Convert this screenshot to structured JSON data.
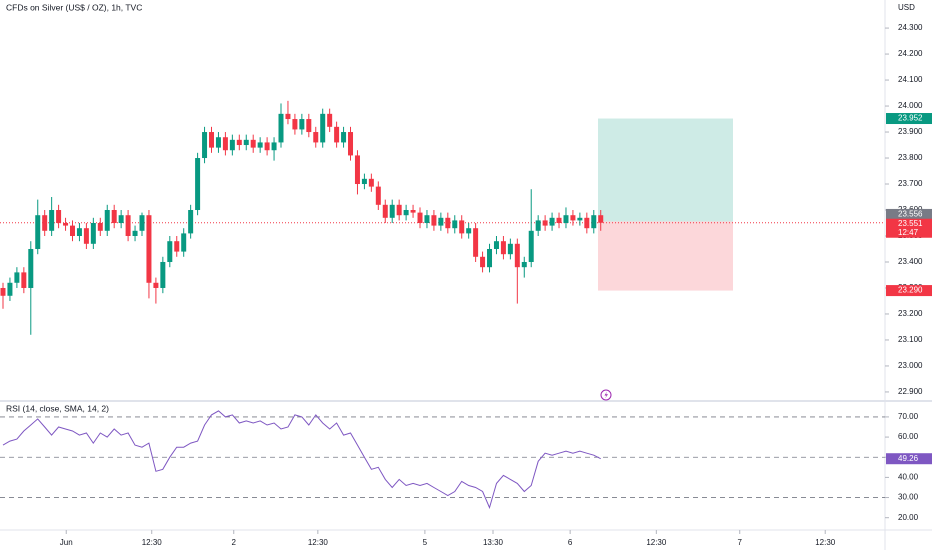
{
  "chart_data": {
    "type": "candlestick",
    "title": "CFDs on Silver (US$ / OZ), 1h, TVC",
    "currency": "USD",
    "up_color": "#089981",
    "down_color": "#f23645",
    "candles": [
      [
        23.3,
        23.32,
        23.22,
        23.27
      ],
      [
        23.27,
        23.34,
        23.25,
        23.32
      ],
      [
        23.32,
        23.38,
        23.3,
        23.36
      ],
      [
        23.36,
        23.38,
        23.28,
        23.3
      ],
      [
        23.3,
        23.48,
        23.12,
        23.45
      ],
      [
        23.45,
        23.64,
        23.43,
        23.58
      ],
      [
        23.58,
        23.6,
        23.5,
        23.52
      ],
      [
        23.52,
        23.65,
        23.5,
        23.6
      ],
      [
        23.6,
        23.62,
        23.53,
        23.55
      ],
      [
        23.55,
        23.57,
        23.52,
        23.54
      ],
      [
        23.54,
        23.56,
        23.48,
        23.5
      ],
      [
        23.5,
        23.55,
        23.48,
        23.53
      ],
      [
        23.53,
        23.55,
        23.45,
        23.47
      ],
      [
        23.47,
        23.57,
        23.45,
        23.55
      ],
      [
        23.55,
        23.57,
        23.5,
        23.52
      ],
      [
        23.52,
        23.62,
        23.5,
        23.6
      ],
      [
        23.6,
        23.62,
        23.53,
        23.55
      ],
      [
        23.55,
        23.6,
        23.53,
        23.58
      ],
      [
        23.58,
        23.6,
        23.48,
        23.5
      ],
      [
        23.5,
        23.54,
        23.48,
        23.52
      ],
      [
        23.52,
        23.59,
        23.5,
        23.58
      ],
      [
        23.58,
        23.6,
        23.26,
        23.32
      ],
      [
        23.32,
        23.34,
        23.24,
        23.3
      ],
      [
        23.3,
        23.42,
        23.28,
        23.4
      ],
      [
        23.4,
        23.5,
        23.38,
        23.48
      ],
      [
        23.48,
        23.5,
        23.42,
        23.44
      ],
      [
        23.44,
        23.53,
        23.42,
        23.51
      ],
      [
        23.51,
        23.62,
        23.49,
        23.6
      ],
      [
        23.6,
        23.82,
        23.58,
        23.8
      ],
      [
        23.8,
        23.92,
        23.78,
        23.9
      ],
      [
        23.9,
        23.92,
        23.82,
        23.84
      ],
      [
        23.84,
        23.9,
        23.82,
        23.88
      ],
      [
        23.88,
        23.9,
        23.81,
        23.83
      ],
      [
        23.83,
        23.89,
        23.81,
        23.87
      ],
      [
        23.87,
        23.89,
        23.83,
        23.85
      ],
      [
        23.85,
        23.89,
        23.83,
        23.87
      ],
      [
        23.87,
        23.89,
        23.82,
        23.84
      ],
      [
        23.84,
        23.88,
        23.82,
        23.86
      ],
      [
        23.86,
        23.88,
        23.81,
        23.83
      ],
      [
        23.83,
        23.88,
        23.79,
        23.86
      ],
      [
        23.86,
        24.01,
        23.84,
        23.97
      ],
      [
        23.97,
        24.02,
        23.93,
        23.95
      ],
      [
        23.95,
        23.97,
        23.89,
        23.91
      ],
      [
        23.91,
        23.97,
        23.89,
        23.95
      ],
      [
        23.95,
        23.97,
        23.88,
        23.9
      ],
      [
        23.9,
        23.92,
        23.84,
        23.86
      ],
      [
        23.86,
        23.99,
        23.84,
        23.97
      ],
      [
        23.97,
        23.99,
        23.9,
        23.92
      ],
      [
        23.92,
        23.94,
        23.84,
        23.86
      ],
      [
        23.86,
        23.92,
        23.84,
        23.9
      ],
      [
        23.9,
        23.92,
        23.79,
        23.81
      ],
      [
        23.81,
        23.83,
        23.66,
        23.7
      ],
      [
        23.7,
        23.74,
        23.68,
        23.72
      ],
      [
        23.72,
        23.74,
        23.67,
        23.69
      ],
      [
        23.69,
        23.71,
        23.6,
        23.62
      ],
      [
        23.62,
        23.64,
        23.55,
        23.57
      ],
      [
        23.57,
        23.64,
        23.55,
        23.62
      ],
      [
        23.62,
        23.64,
        23.56,
        23.58
      ],
      [
        23.58,
        23.62,
        23.56,
        23.6
      ],
      [
        23.6,
        23.62,
        23.57,
        23.59
      ],
      [
        23.59,
        23.61,
        23.53,
        23.55
      ],
      [
        23.55,
        23.6,
        23.53,
        23.58
      ],
      [
        23.58,
        23.6,
        23.52,
        23.54
      ],
      [
        23.54,
        23.59,
        23.52,
        23.57
      ],
      [
        23.57,
        23.59,
        23.51,
        23.53
      ],
      [
        23.53,
        23.58,
        23.51,
        23.56
      ],
      [
        23.56,
        23.58,
        23.49,
        23.51
      ],
      [
        23.51,
        23.55,
        23.49,
        23.53
      ],
      [
        23.53,
        23.55,
        23.4,
        23.42
      ],
      [
        23.42,
        23.44,
        23.36,
        23.38
      ],
      [
        23.38,
        23.47,
        23.36,
        23.45
      ],
      [
        23.45,
        23.5,
        23.43,
        23.48
      ],
      [
        23.48,
        23.5,
        23.41,
        23.43
      ],
      [
        23.43,
        23.49,
        23.41,
        23.47
      ],
      [
        23.47,
        23.49,
        23.24,
        23.38
      ],
      [
        23.38,
        23.42,
        23.34,
        23.4
      ],
      [
        23.4,
        23.68,
        23.38,
        23.52
      ],
      [
        23.52,
        23.58,
        23.5,
        23.56
      ],
      [
        23.56,
        23.58,
        23.52,
        23.54
      ],
      [
        23.54,
        23.59,
        23.52,
        23.57
      ],
      [
        23.57,
        23.59,
        23.53,
        23.55
      ],
      [
        23.55,
        23.61,
        23.53,
        23.58
      ],
      [
        23.58,
        23.6,
        23.54,
        23.56
      ],
      [
        23.56,
        23.59,
        23.54,
        23.57
      ],
      [
        23.57,
        23.59,
        23.51,
        23.53
      ],
      [
        23.53,
        23.6,
        23.51,
        23.58
      ],
      [
        23.58,
        23.6,
        23.52,
        23.551
      ]
    ],
    "ylim": [
      22.869,
      24.408
    ],
    "yticks": [
      {
        "value": 22.9,
        "label": "22.900"
      },
      {
        "value": 23.0,
        "label": "23.000"
      },
      {
        "value": 23.1,
        "label": "23.100"
      },
      {
        "value": 23.2,
        "label": "23.200"
      },
      {
        "value": 23.3,
        "label": "23.300"
      },
      {
        "value": 23.4,
        "label": "23.400"
      },
      {
        "value": 23.5,
        "label": "23.500"
      },
      {
        "value": 23.6,
        "label": "23.600"
      },
      {
        "value": 23.7,
        "label": "23.700"
      },
      {
        "value": 23.8,
        "label": "23.800"
      },
      {
        "value": 23.9,
        "label": "23.900"
      },
      {
        "value": 24.0,
        "label": "24.000"
      },
      {
        "value": 24.1,
        "label": "24.100"
      },
      {
        "value": 24.2,
        "label": "24.200"
      },
      {
        "value": 24.3,
        "label": "24.300"
      }
    ],
    "xlim": [
      -0.43,
      126.9
    ],
    "xticks": [
      {
        "value": 9.1,
        "label": "Jun"
      },
      {
        "value": 21.4,
        "label": "12:30"
      },
      {
        "value": 33.2,
        "label": "2"
      },
      {
        "value": 45.3,
        "label": "12:30"
      },
      {
        "value": 60.7,
        "label": "5"
      },
      {
        "value": 70.5,
        "label": "13:30"
      },
      {
        "value": 81.6,
        "label": "6"
      },
      {
        "value": 94.0,
        "label": "12:30"
      },
      {
        "value": 106.0,
        "label": "7"
      },
      {
        "value": 118.3,
        "label": "12:30"
      }
    ],
    "last_price": 23.551,
    "countdown": "12:47",
    "position": {
      "target": 23.952,
      "entry": 23.556,
      "stop": {
        "value": 23.29,
        "label": "23.290"
      }
    },
    "rsi": {
      "type": "line",
      "title": "RSI (14, close, SMA, 14, 2)",
      "color": "#7e57c2",
      "values": [
        56,
        58,
        59,
        63,
        66,
        69,
        65,
        61,
        65,
        64,
        63,
        61,
        62,
        57,
        62,
        60,
        64,
        61,
        62,
        56,
        55,
        57,
        43,
        44,
        50,
        55,
        55,
        57,
        58,
        66,
        71,
        73,
        70,
        71,
        67,
        68,
        67,
        68,
        66,
        67,
        64,
        65,
        71,
        70,
        66,
        71,
        67,
        64,
        67,
        61,
        62,
        56,
        50,
        44,
        45,
        39,
        35,
        39,
        36,
        37,
        36,
        37,
        35,
        33,
        31,
        33,
        38,
        36,
        35,
        33,
        25,
        37,
        41,
        39,
        37,
        33,
        36,
        48,
        52,
        51,
        52,
        53,
        52,
        53,
        52,
        51,
        49.26
      ],
      "ylim": [
        13.9,
        77.4
      ],
      "yticks": [
        {
          "value": 20,
          "label": "20.00"
        },
        {
          "value": 30,
          "label": "30.00"
        },
        {
          "value": 40,
          "label": "40.00"
        },
        {
          "value": 50,
          "label": "50.00"
        },
        {
          "value": 60,
          "label": "60.00"
        },
        {
          "value": 70,
          "label": "70.00"
        }
      ],
      "bands": [
        70,
        50,
        30
      ]
    }
  }
}
